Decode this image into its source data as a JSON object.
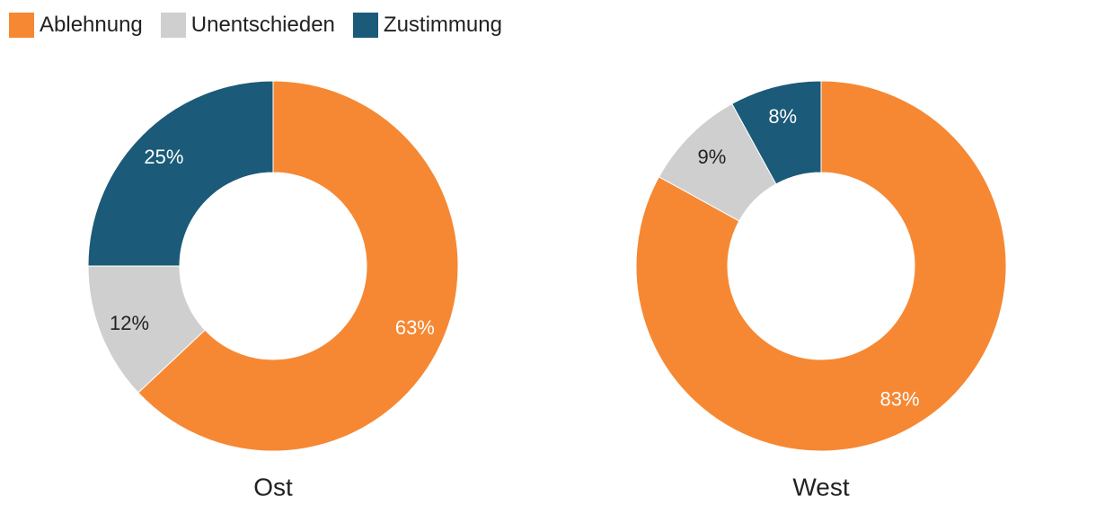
{
  "legend": [
    {
      "label": "Ablehnung",
      "color": "#f68833"
    },
    {
      "label": "Unentschieden",
      "color": "#cfcfcf"
    },
    {
      "label": "Zustimmung",
      "color": "#1b5a78"
    }
  ],
  "chart_data": [
    {
      "type": "pie",
      "style": "donut",
      "label": "Ost",
      "categories": [
        "Ablehnung",
        "Unentschieden",
        "Zustimmung"
      ],
      "values": [
        63,
        12,
        25
      ],
      "value_labels": [
        "63%",
        "12%",
        "25%"
      ],
      "colors": [
        "#f68833",
        "#cfcfcf",
        "#1b5a78"
      ],
      "label_colors": [
        "#ffffff",
        "#222222",
        "#ffffff"
      ]
    },
    {
      "type": "pie",
      "style": "donut",
      "label": "West",
      "categories": [
        "Ablehnung",
        "Unentschieden",
        "Zustimmung"
      ],
      "values": [
        83,
        9,
        8
      ],
      "value_labels": [
        "83%",
        "9%",
        "8%"
      ],
      "colors": [
        "#f68833",
        "#cfcfcf",
        "#1b5a78"
      ],
      "label_colors": [
        "#ffffff",
        "#222222",
        "#ffffff"
      ]
    }
  ]
}
